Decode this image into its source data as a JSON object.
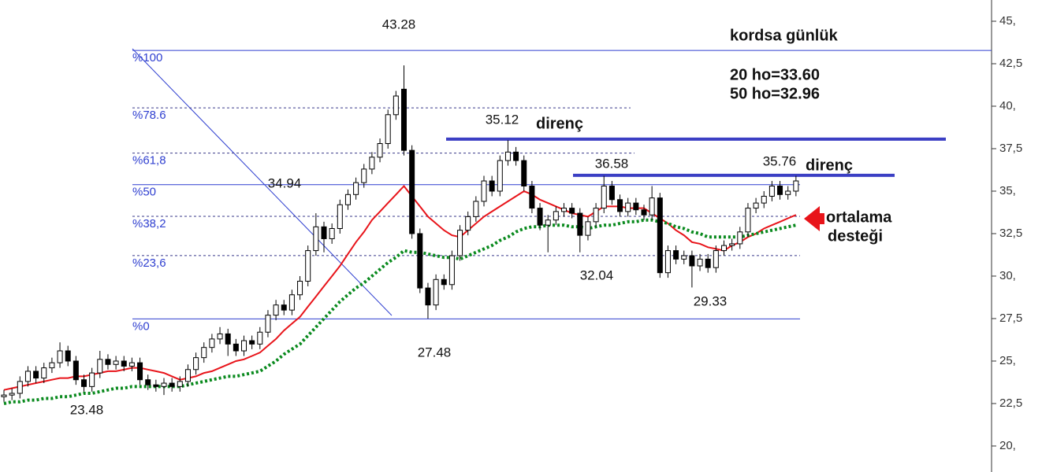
{
  "chart_data": {
    "type": "candlestick",
    "title": "kordsa günlük",
    "ma_info": [
      "20 ho=33.60",
      "50 ho=32.96"
    ],
    "arrow_label": [
      "ortalama",
      "desteği"
    ],
    "ylim": [
      18.47,
      46.25
    ],
    "yticks": [
      {
        "value": 45,
        "label": "45,"
      },
      {
        "value": 42.5,
        "label": "42,5"
      },
      {
        "value": 40,
        "label": "40,"
      },
      {
        "value": 37.5,
        "label": "37,5"
      },
      {
        "value": 35,
        "label": "35,"
      },
      {
        "value": 32.5,
        "label": "32,5"
      },
      {
        "value": 30,
        "label": "30,"
      },
      {
        "value": 27.5,
        "label": "27,5"
      },
      {
        "value": 25,
        "label": "25,"
      },
      {
        "value": 22.5,
        "label": "22,5"
      },
      {
        "value": 20,
        "label": "20,"
      }
    ],
    "open": [
      22.9,
      23.0,
      23.1,
      23.8,
      24.4,
      24.0,
      24.6,
      24.9,
      25.6,
      25.0,
      23.9,
      23.5,
      24.3,
      25.1,
      24.8,
      25.0,
      24.7,
      24.9,
      23.9,
      23.6,
      23.5,
      23.7,
      23.5,
      23.8,
      24.5,
      25.2,
      25.8,
      26.3,
      26.6,
      26.0,
      25.6,
      26.2,
      26.0,
      26.7,
      27.7,
      28.3,
      28.0,
      28.9,
      29.7,
      31.5,
      32.9,
      32.2,
      32.8,
      34.2,
      34.8,
      35.5,
      36.3,
      37.0,
      37.8,
      39.5,
      41.0,
      37.4,
      32.5,
      29.3,
      28.3,
      29.8,
      29.5,
      31.2,
      32.7,
      33.5,
      34.4,
      35.6,
      35.0,
      36.8,
      37.3,
      36.8,
      35.3,
      34.0,
      33.0,
      33.3,
      33.8,
      34.0,
      33.7,
      32.4,
      33.2,
      34.0,
      35.3,
      34.5,
      33.8,
      34.3,
      33.9,
      33.6,
      34.6,
      30.2,
      31.5,
      31.0,
      31.2,
      30.6,
      31.0,
      30.5,
      31.5,
      31.8,
      31.9,
      32.6,
      34.0,
      34.3,
      34.7,
      35.3,
      34.8,
      35.0
    ],
    "high": [
      23.3,
      23.4,
      24.1,
      24.7,
      24.7,
      24.9,
      25.2,
      26.1,
      25.9,
      25.3,
      24.2,
      24.6,
      25.6,
      25.4,
      25.3,
      25.3,
      25.2,
      25.2,
      24.2,
      23.9,
      24.0,
      24.0,
      24.1,
      24.8,
      25.5,
      26.1,
      26.6,
      27.0,
      26.9,
      26.3,
      26.5,
      26.5,
      27.0,
      28.0,
      28.6,
      28.6,
      29.2,
      30.0,
      31.8,
      33.7,
      33.2,
      33.1,
      34.5,
      35.1,
      35.8,
      36.6,
      37.3,
      38.1,
      39.8,
      40.9,
      42.4,
      37.7,
      32.8,
      29.6,
      30.1,
      30.1,
      31.5,
      33.0,
      33.8,
      34.7,
      35.9,
      35.9,
      37.1,
      38.0,
      37.6,
      37.1,
      35.6,
      34.3,
      33.6,
      34.1,
      34.3,
      34.3,
      34.0,
      33.5,
      34.3,
      35.9,
      35.6,
      34.8,
      34.6,
      34.6,
      34.2,
      35.3,
      34.9,
      31.8,
      31.8,
      31.5,
      31.5,
      31.3,
      31.3,
      31.8,
      32.1,
      32.2,
      32.9,
      34.3,
      34.6,
      35.0,
      35.6,
      35.6,
      35.3,
      35.9
    ],
    "low": [
      22.6,
      22.7,
      22.8,
      23.5,
      23.7,
      23.7,
      24.3,
      24.6,
      24.7,
      23.6,
      23.2,
      23.2,
      24.0,
      24.5,
      24.5,
      24.4,
      24.4,
      23.6,
      23.3,
      23.2,
      23.0,
      23.2,
      23.2,
      23.5,
      24.2,
      24.9,
      25.5,
      26.0,
      25.3,
      25.3,
      25.3,
      25.7,
      25.7,
      26.4,
      27.4,
      27.7,
      27.7,
      28.6,
      29.4,
      31.2,
      31.4,
      31.9,
      32.5,
      33.9,
      34.5,
      35.2,
      36.0,
      36.7,
      37.5,
      39.2,
      37.1,
      32.2,
      29.0,
      27.5,
      28.0,
      29.2,
      29.2,
      30.9,
      32.4,
      33.2,
      34.1,
      34.7,
      34.7,
      36.5,
      36.5,
      35.0,
      33.7,
      32.7,
      31.4,
      33.0,
      33.5,
      33.4,
      31.4,
      32.1,
      32.9,
      33.7,
      34.2,
      33.5,
      33.5,
      33.6,
      33.3,
      33.3,
      29.9,
      29.9,
      30.7,
      30.7,
      29.33,
      30.3,
      30.2,
      30.2,
      31.2,
      31.5,
      31.6,
      32.3,
      33.7,
      34.0,
      34.4,
      34.5,
      34.5,
      34.7
    ],
    "close": [
      23.0,
      23.1,
      23.8,
      24.4,
      24.0,
      24.6,
      24.9,
      25.6,
      25.0,
      23.9,
      23.5,
      24.3,
      25.1,
      24.8,
      25.0,
      24.7,
      24.9,
      23.9,
      23.6,
      23.5,
      23.7,
      23.5,
      23.8,
      24.5,
      25.2,
      25.8,
      26.3,
      26.6,
      26.0,
      25.6,
      26.2,
      26.0,
      26.7,
      27.7,
      28.3,
      28.0,
      28.9,
      29.7,
      31.5,
      32.9,
      32.2,
      32.8,
      34.2,
      34.8,
      35.5,
      36.3,
      37.0,
      37.8,
      39.5,
      40.6,
      37.4,
      32.5,
      29.3,
      28.3,
      29.8,
      29.5,
      31.2,
      32.7,
      33.5,
      34.4,
      35.6,
      35.0,
      36.8,
      37.3,
      36.8,
      35.3,
      34.0,
      33.0,
      33.3,
      33.8,
      34.0,
      33.7,
      32.4,
      33.2,
      34.0,
      35.3,
      34.5,
      33.8,
      34.3,
      33.9,
      33.6,
      34.6,
      30.2,
      31.5,
      31.0,
      31.2,
      30.6,
      31.0,
      30.5,
      31.5,
      31.8,
      31.9,
      32.6,
      34.0,
      34.3,
      34.7,
      35.3,
      34.8,
      35.0,
      35.6
    ],
    "ma_lines": [
      {
        "color": "#e8141a",
        "style": "solid",
        "values": [
          23.3,
          23.4,
          23.5,
          23.6,
          23.7,
          23.8,
          23.9,
          24.0,
          24.0,
          24.1,
          24.1,
          24.2,
          24.3,
          24.4,
          24.4,
          24.5,
          24.6,
          24.6,
          24.5,
          24.4,
          24.3,
          24.1,
          23.9,
          24.0,
          24.1,
          24.3,
          24.4,
          24.6,
          24.8,
          25.0,
          25.1,
          25.3,
          25.5,
          25.9,
          26.3,
          26.8,
          27.2,
          27.6,
          28.2,
          28.8,
          29.4,
          30.0,
          30.6,
          31.3,
          32.0,
          32.6,
          33.3,
          33.8,
          34.3,
          34.8,
          35.3,
          34.7,
          34.1,
          33.5,
          33.1,
          32.7,
          32.4,
          32.3,
          32.7,
          33.1,
          33.5,
          33.8,
          34.1,
          34.4,
          34.7,
          35.0,
          34.8,
          34.5,
          34.3,
          34.1,
          33.9,
          33.7,
          33.6,
          33.5,
          33.8,
          34.1,
          34.1,
          34.1,
          34.0,
          34.0,
          34.0,
          33.7,
          33.4,
          33.1,
          32.7,
          32.4,
          32.0,
          31.9,
          31.7,
          31.6,
          31.5,
          31.8,
          32.0,
          32.3,
          32.5,
          32.8,
          33.0,
          33.2,
          33.4,
          33.6
        ]
      },
      {
        "color": "#0a8a1e",
        "style": "dotted",
        "values": [
          22.5,
          22.6,
          22.6,
          22.7,
          22.7,
          22.8,
          22.8,
          22.9,
          22.9,
          23.0,
          23.1,
          23.1,
          23.2,
          23.3,
          23.4,
          23.4,
          23.5,
          23.5,
          23.5,
          23.5,
          23.5,
          23.5,
          23.5,
          23.6,
          23.7,
          23.8,
          23.9,
          24.0,
          24.1,
          24.1,
          24.2,
          24.3,
          24.4,
          24.7,
          25.0,
          25.4,
          25.7,
          26.0,
          26.5,
          27.0,
          27.5,
          28.0,
          28.5,
          28.9,
          29.3,
          29.6,
          30.0,
          30.4,
          30.8,
          31.1,
          31.5,
          31.4,
          31.4,
          31.3,
          31.2,
          31.1,
          31.1,
          31.0,
          31.2,
          31.4,
          31.6,
          31.8,
          32.1,
          32.3,
          32.6,
          32.8,
          32.9,
          32.9,
          33.0,
          33.0,
          33.0,
          32.9,
          32.9,
          32.8,
          32.9,
          33.0,
          33.0,
          33.1,
          33.2,
          33.2,
          33.3,
          33.3,
          33.2,
          33.1,
          32.9,
          32.8,
          32.6,
          32.5,
          32.3,
          32.3,
          32.3,
          32.3,
          32.3,
          32.4,
          32.5,
          32.6,
          32.7,
          32.8,
          32.9,
          33.0
        ]
      }
    ],
    "fib_levels": [
      {
        "label": "%100",
        "value": 43.28
      },
      {
        "label": "%78.6",
        "value": 39.9
      },
      {
        "label": "%61,8",
        "value": 37.24
      },
      {
        "label": "%50",
        "value": 35.38
      },
      {
        "label": "%38,2",
        "value": 33.52
      },
      {
        "label": "%23,6",
        "value": 31.21
      },
      {
        "label": "%0",
        "value": 27.48
      }
    ],
    "resistance": [
      {
        "label": "direnç",
        "value": 38.06
      },
      {
        "label": "direnç",
        "value": 35.93
      }
    ],
    "annotations": [
      "43.28",
      "34.94",
      "35.12",
      "36.58",
      "35.76",
      "27.48",
      "32.04",
      "29.33",
      "23.48"
    ]
  }
}
